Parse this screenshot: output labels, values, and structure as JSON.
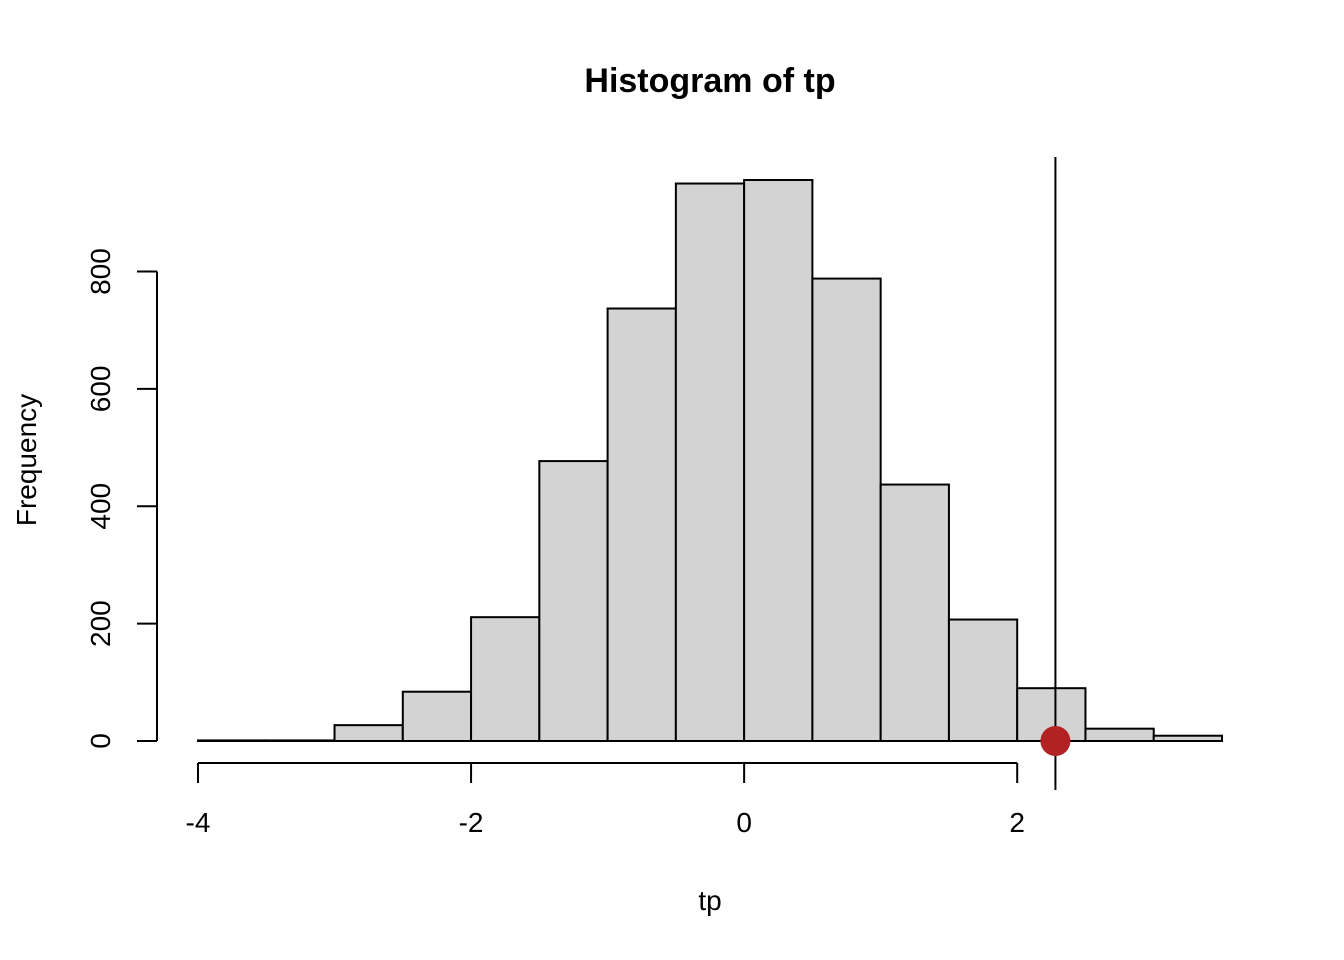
{
  "chart_data": {
    "type": "bar",
    "title": "Histogram of tp",
    "xlabel": "tp",
    "ylabel": "Frequency",
    "bin_edges": [
      -4,
      -3.5,
      -3,
      -2.5,
      -2,
      -1.5,
      -1,
      -0.5,
      0,
      0.5,
      1,
      1.5,
      2,
      2.5,
      3,
      3.5
    ],
    "values": [
      1,
      1,
      27,
      84,
      211,
      477,
      737,
      950,
      956,
      788,
      437,
      207,
      90,
      21,
      9
    ],
    "xlim": [
      -4,
      3.5
    ],
    "ylim": [
      0,
      956
    ],
    "x_ticks": [
      -4,
      -2,
      0,
      2
    ],
    "x_tick_labels": [
      "-4",
      "-2",
      "0",
      "2"
    ],
    "y_ticks": [
      0,
      200,
      400,
      600,
      800
    ],
    "y_tick_labels": [
      "0",
      "200",
      "400",
      "600",
      "800"
    ],
    "bar_fill": "#d3d3d3",
    "vline_x": 2.28,
    "point": {
      "x": 2.28,
      "y": 0,
      "color": "#b22222"
    },
    "grid": false,
    "legend": "none"
  }
}
